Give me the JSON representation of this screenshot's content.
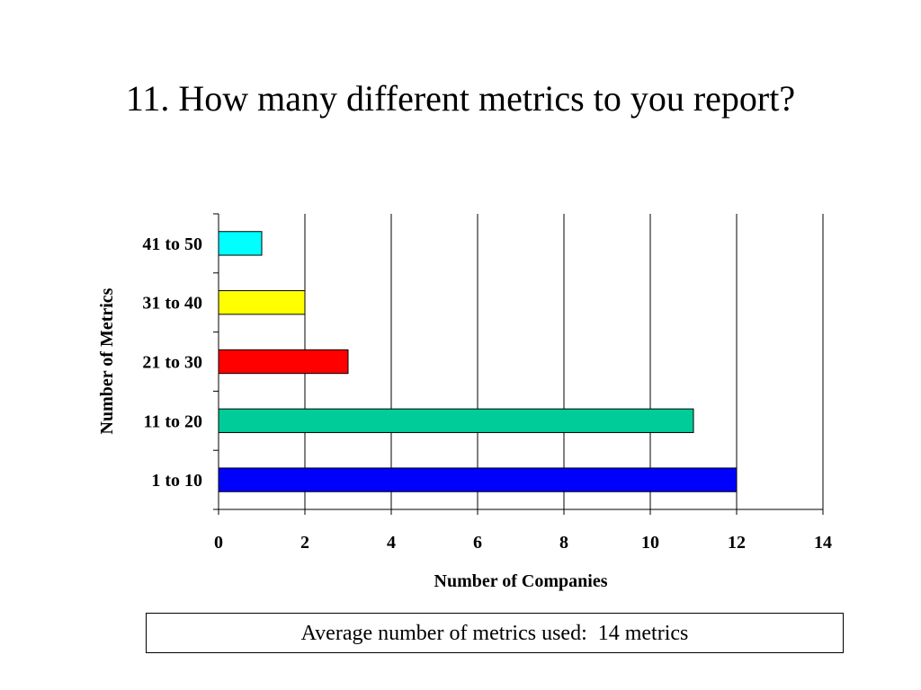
{
  "slide": {
    "title": "11.  How many different metrics to you report?",
    "note": "Average number of metrics used:  14 metrics"
  },
  "chart_data": {
    "type": "bar",
    "orientation": "horizontal",
    "categories": [
      "1 to 10",
      "11 to 20",
      "21 to 30",
      "31 to 40",
      "41 to 50"
    ],
    "values": [
      12,
      11,
      3,
      2,
      1
    ],
    "colors": [
      "#0000ff",
      "#00cc99",
      "#ff0000",
      "#ffff00",
      "#00ffff"
    ],
    "title": "",
    "xlabel": "Number of Companies",
    "ylabel": "Number of Metrics",
    "xlim": [
      0,
      14
    ],
    "xticks": [
      0,
      2,
      4,
      6,
      8,
      10,
      12,
      14
    ],
    "grid": "vertical",
    "legend": "none"
  }
}
